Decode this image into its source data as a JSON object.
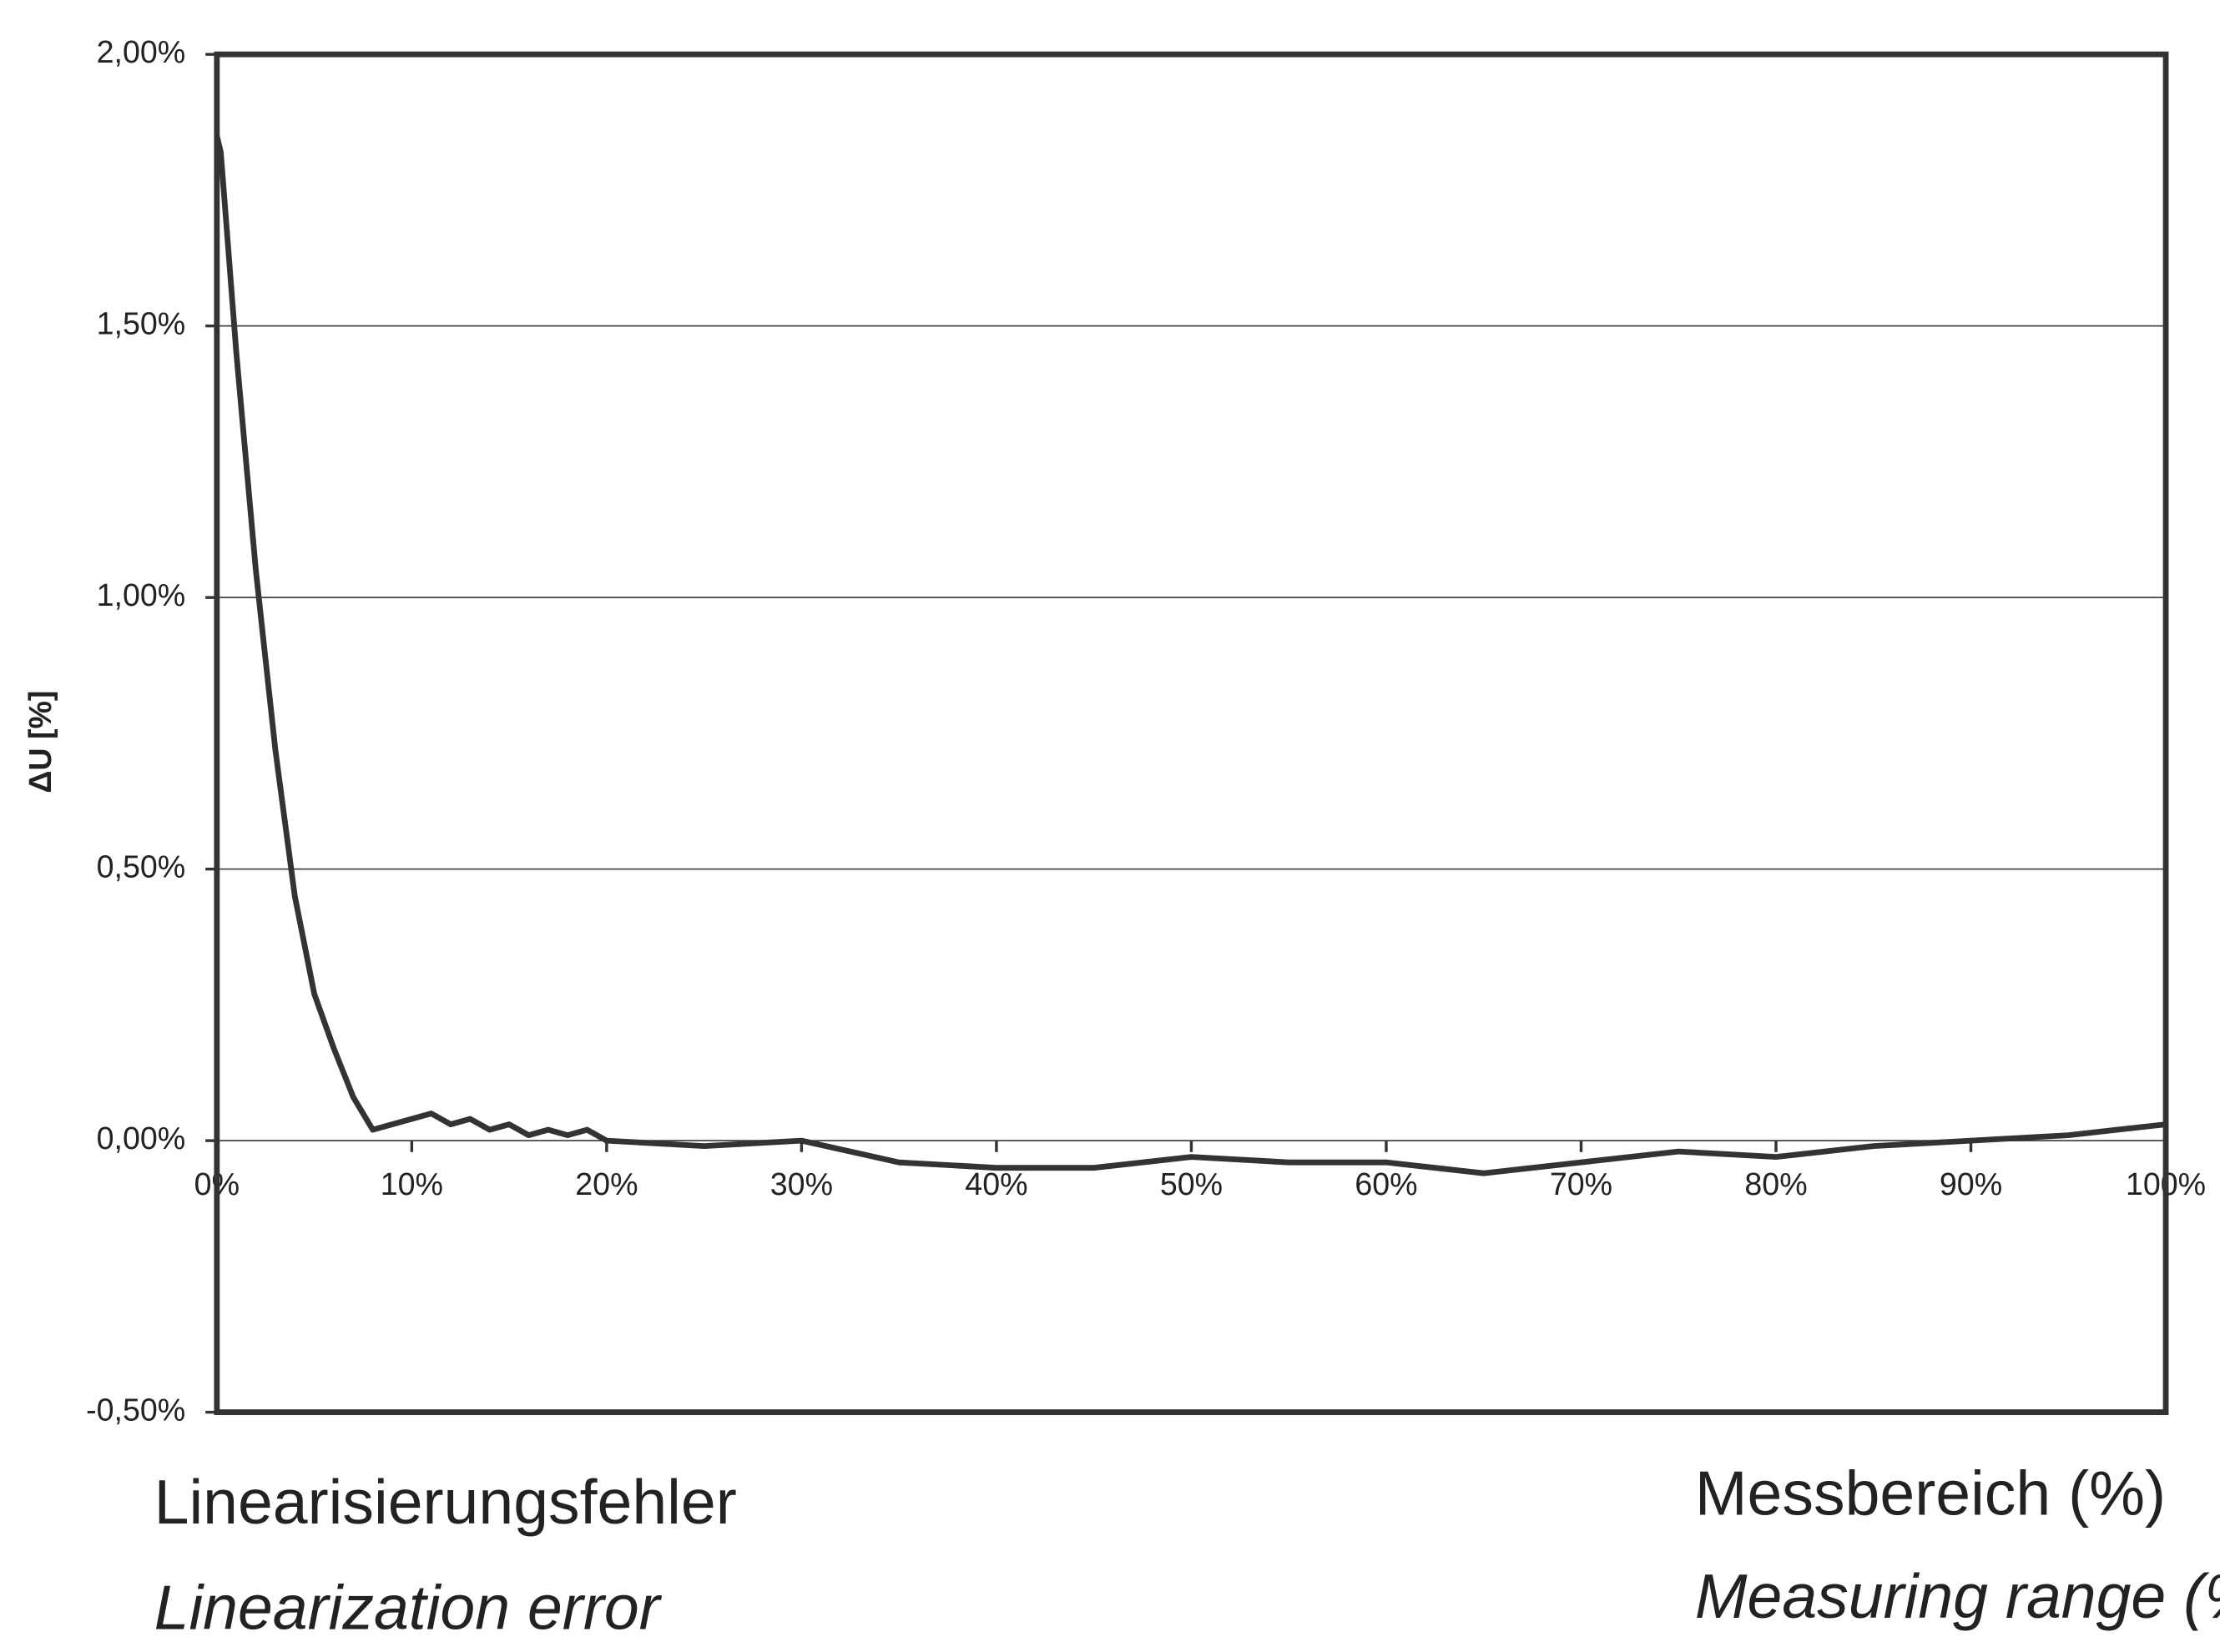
{
  "chart_data": {
    "type": "line",
    "ylabel": "ΔU [%]",
    "caption_de": "Linearisierungsfehler",
    "caption_en": "Linearization error",
    "xlabel_de": "Messbereich (%)",
    "xlabel_en": "Measuring range (%)",
    "x": [
      0,
      0.2,
      1,
      2,
      3,
      4,
      5,
      6,
      7,
      8,
      9,
      10,
      11,
      12,
      13,
      14,
      15,
      16,
      17,
      18,
      19,
      20,
      25,
      30,
      35,
      40,
      45,
      50,
      55,
      60,
      65,
      70,
      75,
      80,
      85,
      90,
      95,
      100
    ],
    "series": [
      {
        "name": "ΔU",
        "color": "#333333",
        "values": [
          1.85,
          1.82,
          1.45,
          1.05,
          0.72,
          0.45,
          0.27,
          0.17,
          0.08,
          0.02,
          0.03,
          0.04,
          0.05,
          0.03,
          0.04,
          0.02,
          0.03,
          0.01,
          0.02,
          0.01,
          0.02,
          0.0,
          -0.01,
          0.0,
          -0.04,
          -0.05,
          -0.05,
          -0.03,
          -0.04,
          -0.04,
          -0.06,
          -0.04,
          -0.02,
          -0.03,
          -0.01,
          0.0,
          0.01,
          0.03
        ]
      }
    ],
    "xlim": [
      0,
      100
    ],
    "xticks": [
      {
        "value": 0,
        "label": "0%"
      },
      {
        "value": 10,
        "label": "10%"
      },
      {
        "value": 20,
        "label": "20%"
      },
      {
        "value": 30,
        "label": "30%"
      },
      {
        "value": 40,
        "label": "40%"
      },
      {
        "value": 50,
        "label": "50%"
      },
      {
        "value": 60,
        "label": "60%"
      },
      {
        "value": 70,
        "label": "70%"
      },
      {
        "value": 80,
        "label": "80%"
      },
      {
        "value": 90,
        "label": "90%"
      },
      {
        "value": 100,
        "label": "100%"
      }
    ],
    "ylim": [
      -0.5,
      2.0
    ],
    "yticks": [
      {
        "value": -0.5,
        "label": "-0,50%"
      },
      {
        "value": 0,
        "label": "0,00%"
      },
      {
        "value": 0.5,
        "label": "0,50%"
      },
      {
        "value": 1.0,
        "label": "1,00%"
      },
      {
        "value": 1.5,
        "label": "1,50%"
      },
      {
        "value": 2.0,
        "label": "2,00%"
      }
    ],
    "grid": true
  }
}
